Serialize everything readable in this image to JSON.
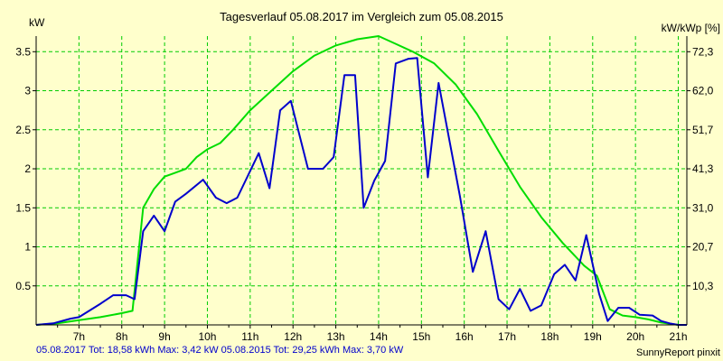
{
  "chart_data": {
    "type": "line",
    "title": "Tagesverlauf 05.08.2017 im Vergleich zum 05.08.2015",
    "ylabel_left": "kW",
    "ylabel_right": "kW/kWp [%]",
    "ylim": [
      0,
      3.7
    ],
    "xlim": [
      6.0,
      21.2
    ],
    "grid": true,
    "yticks_left": [
      {
        "v": 0.5,
        "label": "0.5"
      },
      {
        "v": 1,
        "label": "1"
      },
      {
        "v": 1.5,
        "label": "1.5"
      },
      {
        "v": 2,
        "label": "2"
      },
      {
        "v": 2.5,
        "label": "2.5"
      },
      {
        "v": 3,
        "label": "3"
      },
      {
        "v": 3.5,
        "label": "3.5"
      }
    ],
    "yticks_right": [
      {
        "v": 0.5,
        "label": "10,3"
      },
      {
        "v": 1,
        "label": "20,7"
      },
      {
        "v": 1.5,
        "label": "31,0"
      },
      {
        "v": 2,
        "label": "41,3"
      },
      {
        "v": 2.5,
        "label": "51,7"
      },
      {
        "v": 3,
        "label": "62,0"
      },
      {
        "v": 3.5,
        "label": "72,3"
      }
    ],
    "xticks": [
      {
        "v": 7,
        "label": "7h"
      },
      {
        "v": 8,
        "label": "8h"
      },
      {
        "v": 9,
        "label": "9h"
      },
      {
        "v": 10,
        "label": "10h"
      },
      {
        "v": 11,
        "label": "11h"
      },
      {
        "v": 12,
        "label": "12h"
      },
      {
        "v": 13,
        "label": "13h"
      },
      {
        "v": 14,
        "label": "14h"
      },
      {
        "v": 15,
        "label": "15h"
      },
      {
        "v": 16,
        "label": "16h"
      },
      {
        "v": 17,
        "label": "17h"
      },
      {
        "v": 18,
        "label": "18h"
      },
      {
        "v": 19,
        "label": "19h"
      },
      {
        "v": 20,
        "label": "20h"
      },
      {
        "v": 21,
        "label": "21h"
      }
    ],
    "series": [
      {
        "name": "05.08.2017",
        "color": "#0000cc",
        "points": [
          [
            6.0,
            0.0
          ],
          [
            6.4,
            0.02
          ],
          [
            6.8,
            0.08
          ],
          [
            7.0,
            0.1
          ],
          [
            7.5,
            0.27
          ],
          [
            7.8,
            0.38
          ],
          [
            8.1,
            0.38
          ],
          [
            8.3,
            0.33
          ],
          [
            8.5,
            1.2
          ],
          [
            8.75,
            1.4
          ],
          [
            9.0,
            1.2
          ],
          [
            9.25,
            1.58
          ],
          [
            9.5,
            1.68
          ],
          [
            9.9,
            1.86
          ],
          [
            10.2,
            1.63
          ],
          [
            10.45,
            1.56
          ],
          [
            10.7,
            1.63
          ],
          [
            11.2,
            2.2
          ],
          [
            11.45,
            1.75
          ],
          [
            11.7,
            2.75
          ],
          [
            11.95,
            2.87
          ],
          [
            12.35,
            2.0
          ],
          [
            12.7,
            2.0
          ],
          [
            12.95,
            2.15
          ],
          [
            13.2,
            3.2
          ],
          [
            13.45,
            3.2
          ],
          [
            13.65,
            1.5
          ],
          [
            13.9,
            1.85
          ],
          [
            14.15,
            2.1
          ],
          [
            14.4,
            3.35
          ],
          [
            14.7,
            3.41
          ],
          [
            14.9,
            3.42
          ],
          [
            15.15,
            1.89
          ],
          [
            15.4,
            3.1
          ],
          [
            15.9,
            1.65
          ],
          [
            16.2,
            0.68
          ],
          [
            16.5,
            1.2
          ],
          [
            16.8,
            0.33
          ],
          [
            17.05,
            0.2
          ],
          [
            17.3,
            0.46
          ],
          [
            17.55,
            0.18
          ],
          [
            17.8,
            0.25
          ],
          [
            18.1,
            0.65
          ],
          [
            18.35,
            0.77
          ],
          [
            18.6,
            0.57
          ],
          [
            18.85,
            1.15
          ],
          [
            19.15,
            0.4
          ],
          [
            19.35,
            0.05
          ],
          [
            19.6,
            0.22
          ],
          [
            19.85,
            0.22
          ],
          [
            20.1,
            0.13
          ],
          [
            20.4,
            0.12
          ],
          [
            20.6,
            0.05
          ],
          [
            20.8,
            0.02
          ],
          [
            21.0,
            0.0
          ],
          [
            21.2,
            0.0
          ]
        ]
      },
      {
        "name": "05.08.2015",
        "color": "#00dd00",
        "points": [
          [
            6.0,
            0.0
          ],
          [
            6.5,
            0.02
          ],
          [
            7.0,
            0.06
          ],
          [
            7.5,
            0.1
          ],
          [
            8.0,
            0.15
          ],
          [
            8.25,
            0.18
          ],
          [
            8.5,
            1.5
          ],
          [
            8.75,
            1.74
          ],
          [
            9.0,
            1.9
          ],
          [
            9.25,
            1.95
          ],
          [
            9.5,
            2.0
          ],
          [
            9.75,
            2.15
          ],
          [
            10.0,
            2.25
          ],
          [
            10.3,
            2.33
          ],
          [
            10.6,
            2.5
          ],
          [
            11.0,
            2.75
          ],
          [
            11.5,
            3.0
          ],
          [
            12.0,
            3.25
          ],
          [
            12.5,
            3.45
          ],
          [
            13.0,
            3.58
          ],
          [
            13.5,
            3.66
          ],
          [
            14.0,
            3.7
          ],
          [
            14.4,
            3.6
          ],
          [
            14.8,
            3.5
          ],
          [
            15.3,
            3.35
          ],
          [
            15.8,
            3.08
          ],
          [
            16.3,
            2.7
          ],
          [
            16.8,
            2.23
          ],
          [
            17.3,
            1.77
          ],
          [
            17.8,
            1.38
          ],
          [
            18.3,
            1.05
          ],
          [
            18.8,
            0.76
          ],
          [
            19.1,
            0.63
          ],
          [
            19.4,
            0.2
          ],
          [
            19.7,
            0.12
          ],
          [
            20.0,
            0.1
          ],
          [
            20.3,
            0.07
          ],
          [
            20.6,
            0.03
          ],
          [
            21.0,
            0.0
          ],
          [
            21.2,
            0.0
          ]
        ]
      }
    ]
  },
  "footer": {
    "series1_text": "05.08.2017 Tot: 18,58 kWh Max: 3,42 kW",
    "series2_text": "05.08.2015 Tot: 29,25 kWh Max: 3,70 kW",
    "source": "SunnyReport pinxit"
  }
}
